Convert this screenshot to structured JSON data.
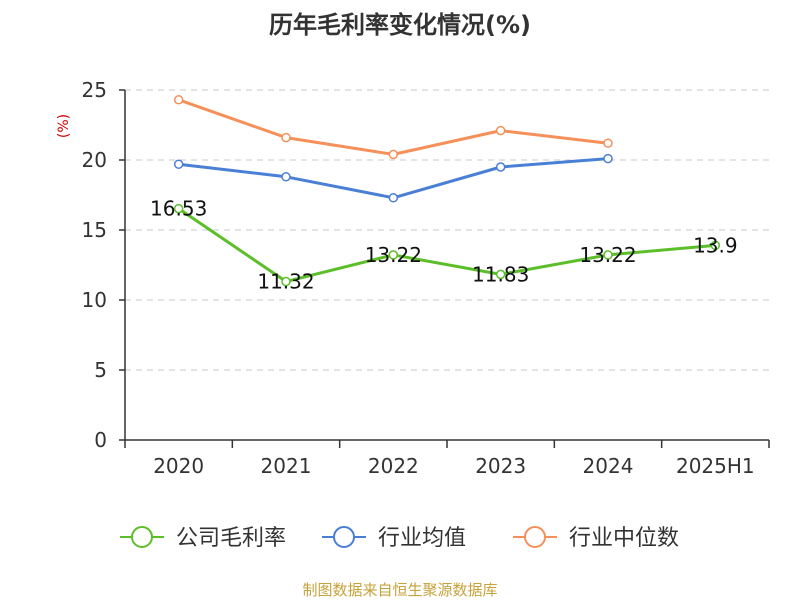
{
  "chart_data": {
    "type": "line",
    "title": "历年毛利率变化情况(%)",
    "ylabel": "(%)",
    "categories": [
      "2020",
      "2021",
      "2022",
      "2023",
      "2024",
      "2025H1"
    ],
    "ylim": [
      0,
      25
    ],
    "yticks": [
      0,
      5,
      10,
      15,
      20,
      25
    ],
    "grid": true,
    "legend_position": "bottom",
    "series": [
      {
        "name": "公司毛利率",
        "color": "#5cbf2a",
        "values": [
          16.53,
          11.32,
          13.22,
          11.83,
          13.22,
          13.9
        ],
        "labels": [
          "16.53",
          "11.32",
          "13.22",
          "11.83",
          "13.22",
          "13.9"
        ]
      },
      {
        "name": "行业均值",
        "color": "#4a7fd6",
        "values": [
          19.7,
          18.8,
          17.3,
          19.5,
          20.1,
          null
        ]
      },
      {
        "name": "行业中位数",
        "color": "#f5905a",
        "values": [
          24.3,
          21.6,
          20.4,
          22.1,
          21.2,
          null
        ]
      }
    ]
  },
  "source": {
    "text": "制图数据来自恒生聚源数据库",
    "color": "#c7a23a"
  },
  "ylabel_color": "#cc0000"
}
